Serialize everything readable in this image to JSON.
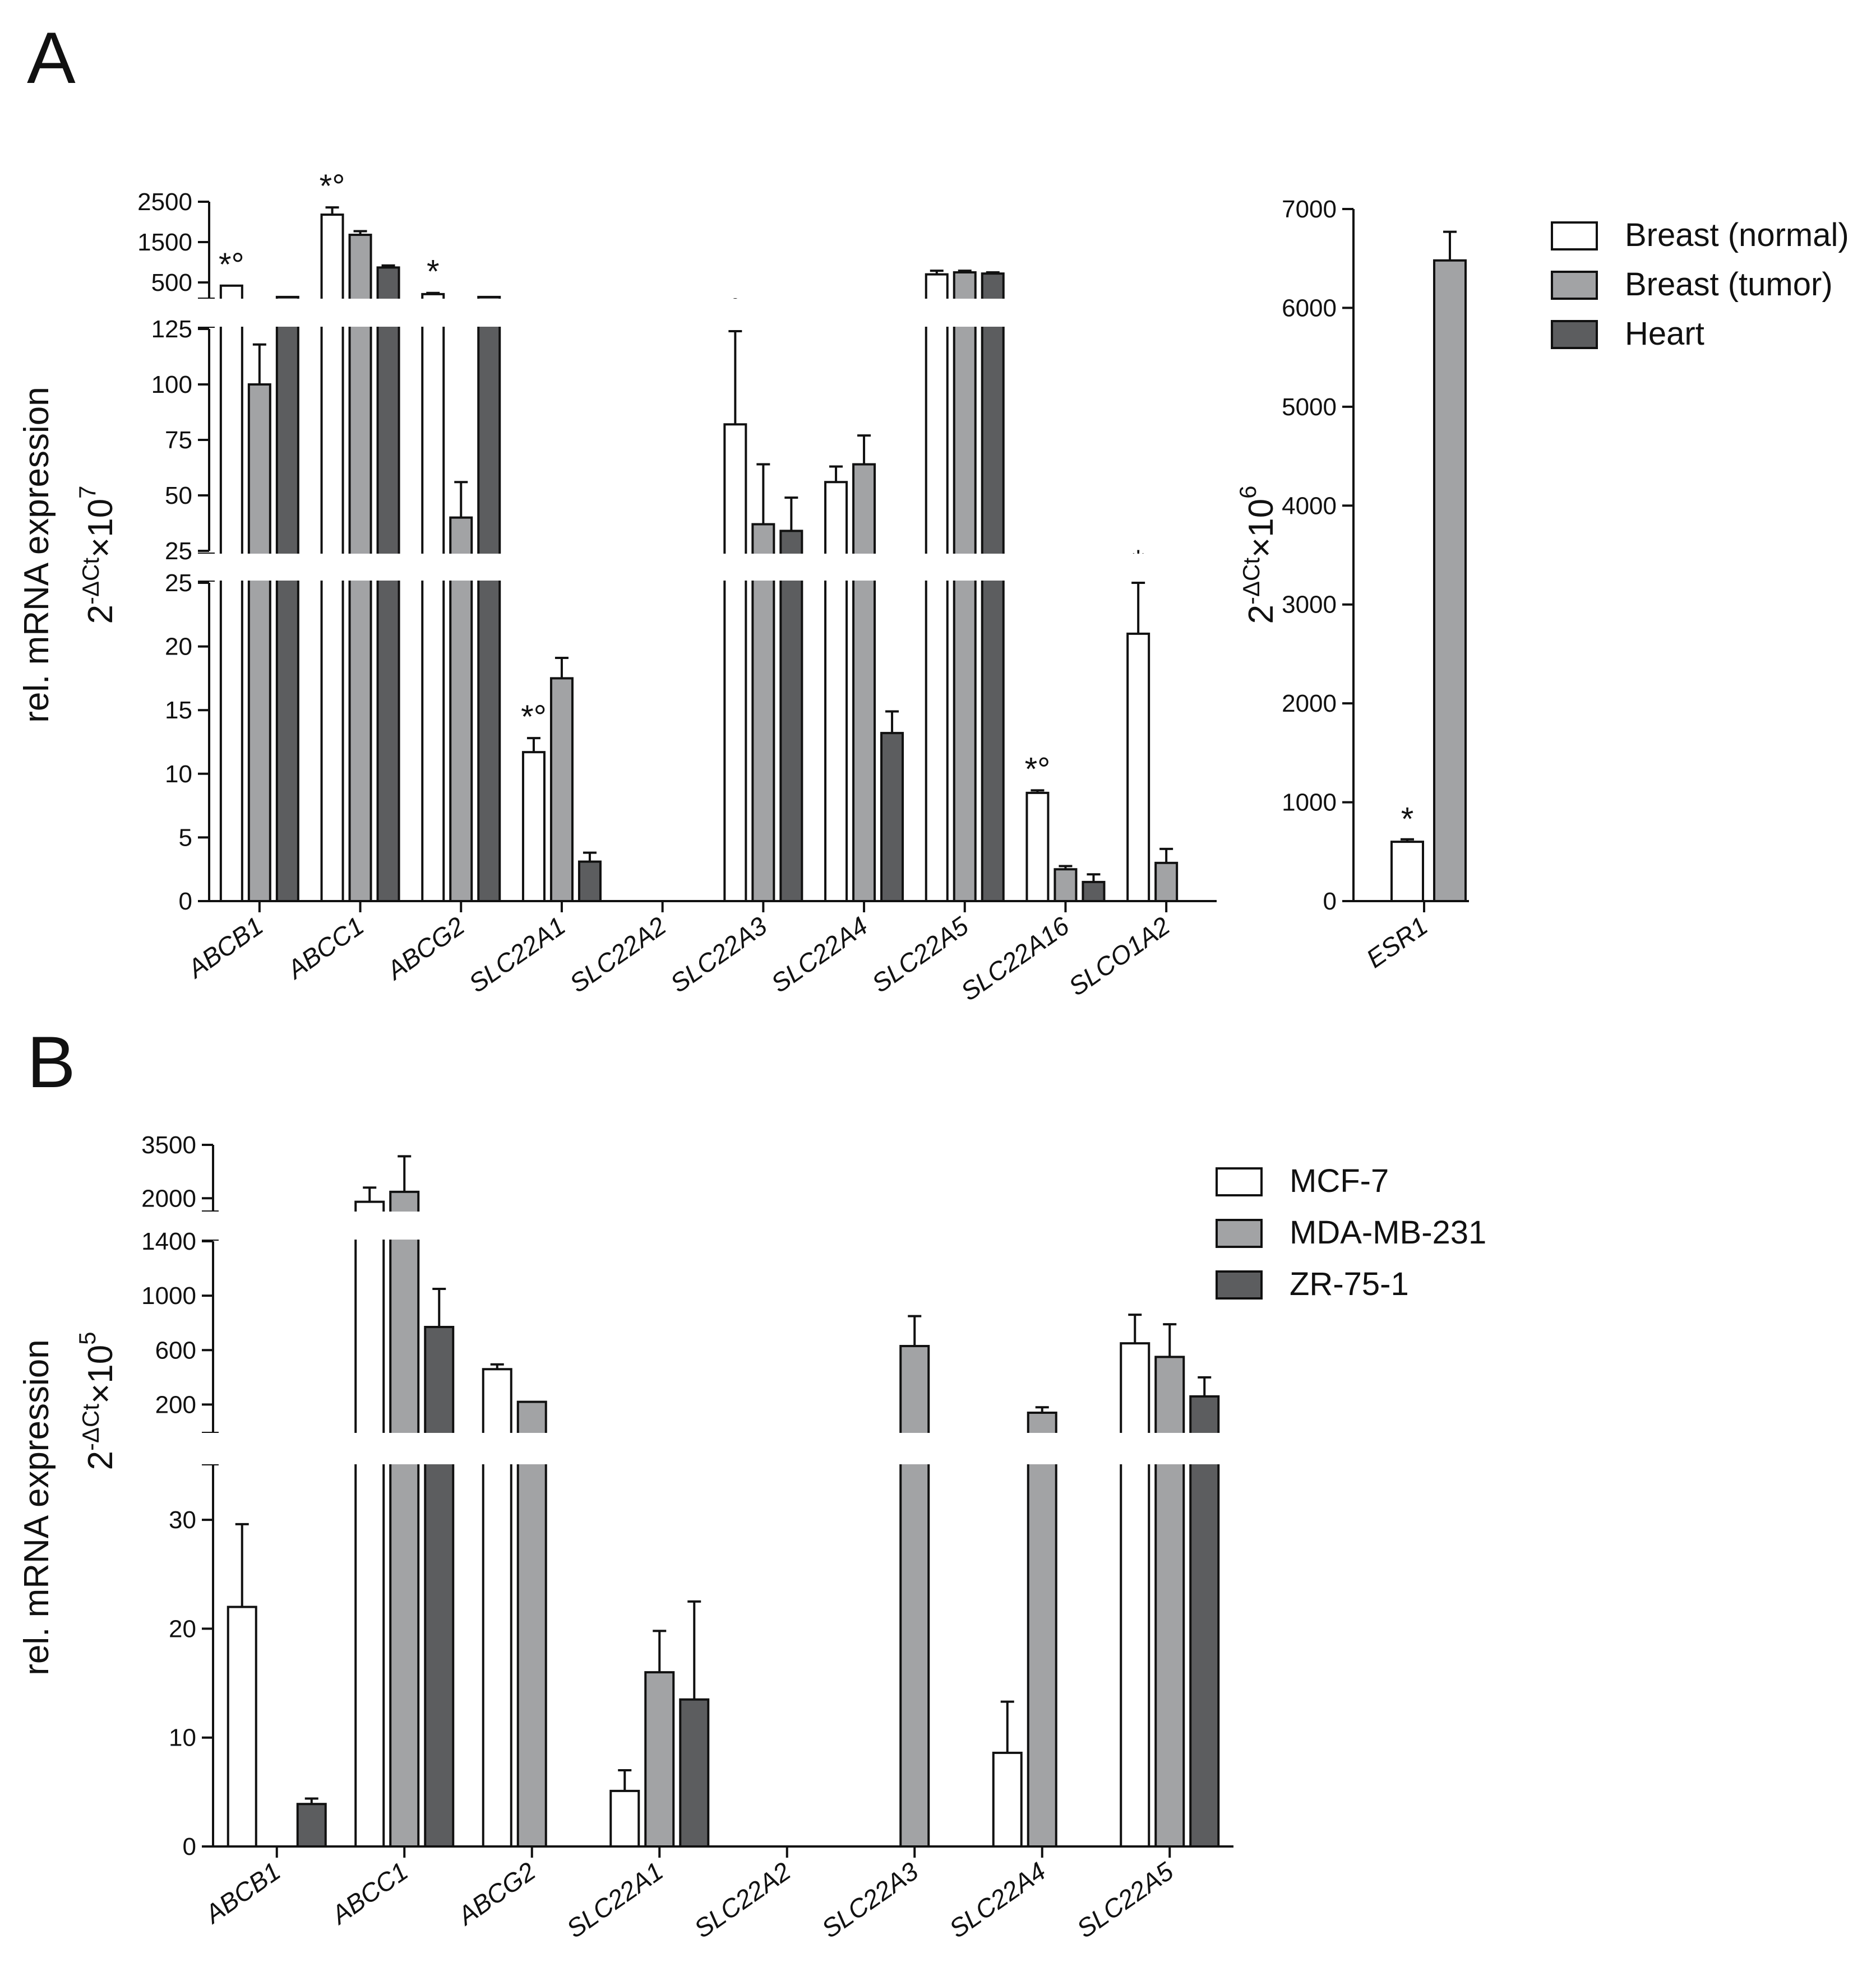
{
  "colors": {
    "normal": "#ffffff",
    "tumor": "#a2a3a5",
    "heart": "#5c5d5f",
    "stroke": "#111111"
  },
  "chart_data": [
    {
      "panel_label": "A",
      "type": "bar",
      "title": "",
      "ylabel_main": "rel. mRNA expression",
      "ylabel_sub": "2-ΔCt×10^7",
      "yunit": {
        "base": "2",
        "exp": "-ΔCt",
        "times": "×10",
        "pow": "7"
      },
      "categories": [
        "ABCB1",
        "ABCC1",
        "ABCG2",
        "SLC22A1",
        "SLC22A2",
        "SLC22A3",
        "SLC22A4",
        "SLC22A5",
        "SLC22A16",
        "SLCO1A2"
      ],
      "axis_segments": [
        {
          "range": [
            0,
            25
          ],
          "ticks": [
            "0",
            "5",
            "10",
            "15",
            "20",
            "25"
          ]
        },
        {
          "range": [
            25,
            130
          ],
          "ticks": [
            "25",
            "50",
            "75",
            "100",
            "125"
          ]
        },
        {
          "range": [
            0,
            2700
          ],
          "ticks": [
            "500",
            "1500",
            "2500"
          ]
        }
      ],
      "series": [
        {
          "name": "Breast (normal)",
          "values": [
            420,
            2180,
            210,
            11.7,
            0,
            82,
            56,
            700,
            8.5,
            21
          ],
          "errors": [
            0,
            180,
            30,
            1.1,
            0,
            42,
            7,
            90,
            0.2,
            4
          ]
        },
        {
          "name": "Breast (tumor)",
          "values": [
            100,
            1680,
            40,
            17.5,
            0,
            37,
            64,
            750,
            2.5,
            3
          ],
          "errors": [
            18,
            90,
            16,
            1.6,
            0,
            27,
            13,
            40,
            0.25,
            1.1
          ]
        },
        {
          "name": "Heart",
          "values": [
            140,
            870,
            140,
            3.1,
            0,
            34,
            13.2,
            720,
            1.5,
            0
          ],
          "errors": [
            0,
            50,
            0,
            0.7,
            0,
            15,
            1.7,
            30,
            0.6,
            0
          ]
        }
      ],
      "annotations": [
        {
          "category": "ABCB1",
          "text": "*°"
        },
        {
          "category": "ABCC1",
          "text": "*°"
        },
        {
          "category": "ABCG2",
          "text": "*"
        },
        {
          "category": "SLC22A1",
          "text": "*°"
        },
        {
          "category": "SLC22A3",
          "text": "°"
        },
        {
          "category": "SLC22A16",
          "text": "*°"
        },
        {
          "category": "SLCO1A2",
          "text": "*"
        }
      ],
      "legend": [
        "Breast (normal)",
        "Breast (tumor)",
        "Heart"
      ],
      "legend_position": "top-right"
    },
    {
      "panel_label": "",
      "type": "bar",
      "title": "",
      "yunit": {
        "base": "2",
        "exp": "-ΔCt",
        "times": "×10",
        "pow": "6"
      },
      "categories": [
        "ESR1"
      ],
      "ylim": [
        0,
        7000
      ],
      "yticks": [
        "0",
        "1000",
        "2000",
        "3000",
        "4000",
        "5000",
        "6000",
        "7000"
      ],
      "series": [
        {
          "name": "Breast (normal)",
          "values": [
            600
          ],
          "errors": [
            25
          ]
        },
        {
          "name": "Breast (tumor)",
          "values": [
            6480
          ],
          "errors": [
            290
          ]
        }
      ],
      "annotations": [
        {
          "category": "ESR1",
          "text": "*"
        }
      ]
    },
    {
      "panel_label": "B",
      "type": "bar",
      "title": "",
      "ylabel_main": "rel. mRNA expression",
      "yunit": {
        "base": "2",
        "exp": "-ΔCt",
        "times": "×10",
        "pow": "5"
      },
      "categories": [
        "ABCB1",
        "ABCC1",
        "ABCG2",
        "SLC22A1",
        "SLC22A2",
        "SLC22A3",
        "SLC22A4",
        "SLC22A5"
      ],
      "axis_segments": [
        {
          "range": [
            0,
            35
          ],
          "ticks": [
            "0",
            "10",
            "20",
            "30"
          ]
        },
        {
          "range": [
            0,
            1400
          ],
          "ticks": [
            "200",
            "600",
            "1000",
            "1400"
          ]
        },
        {
          "range": [
            1500,
            3500
          ],
          "ticks": [
            "2000",
            "3500"
          ]
        }
      ],
      "series": [
        {
          "name": "MCF-7",
          "values": [
            22,
            1900,
            460,
            5.1,
            0,
            0,
            8.6,
            650
          ],
          "errors": [
            7.6,
            400,
            35,
            1.9,
            0,
            0,
            4.7,
            210
          ]
        },
        {
          "name": "MDA-MB-231",
          "values": [
            0,
            2180,
            220,
            16,
            0,
            630,
            140,
            550
          ],
          "errors": [
            0,
            1000,
            0,
            3.8,
            0,
            220,
            40,
            240
          ]
        },
        {
          "name": "ZR-75-1",
          "values": [
            3.9,
            770,
            0,
            13.5,
            0,
            0,
            0,
            260
          ],
          "errors": [
            0.5,
            280,
            0,
            9,
            0,
            0,
            0,
            140
          ]
        }
      ],
      "legend": [
        "MCF-7",
        "MDA-MB-231",
        "ZR-75-1"
      ],
      "legend_position": "top-right"
    }
  ]
}
